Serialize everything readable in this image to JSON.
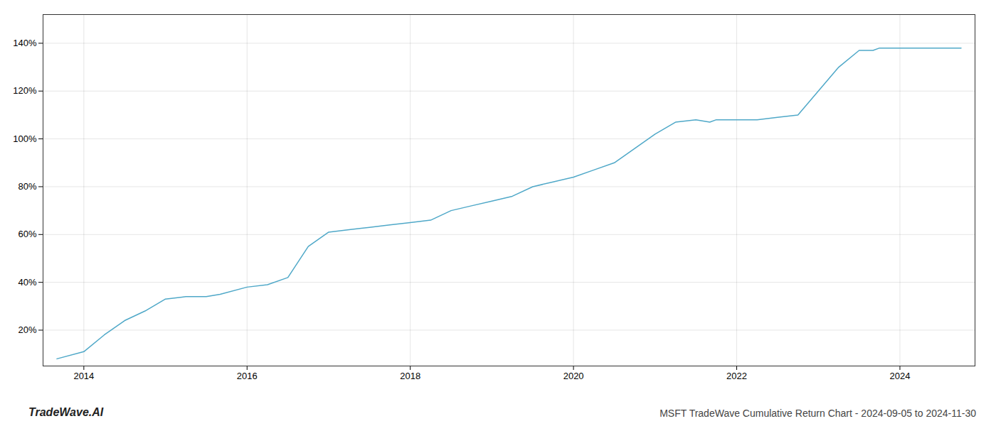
{
  "chart_data": {
    "type": "line",
    "title": "MSFT TradeWave Cumulative Return Chart - 2024-09-05 to 2024-11-30",
    "annotations": [
      "TradeWave.AI"
    ],
    "x": [
      2013.67,
      2014.0,
      2014.25,
      2014.5,
      2014.75,
      2015.0,
      2015.25,
      2015.5,
      2015.67,
      2016.0,
      2016.25,
      2016.5,
      2016.75,
      2017.0,
      2017.25,
      2017.5,
      2017.75,
      2018.0,
      2018.25,
      2018.5,
      2018.75,
      2019.0,
      2019.25,
      2019.5,
      2019.75,
      2020.0,
      2020.25,
      2020.5,
      2020.75,
      2021.0,
      2021.25,
      2021.5,
      2021.67,
      2021.75,
      2022.0,
      2022.25,
      2022.5,
      2022.75,
      2023.0,
      2023.25,
      2023.5,
      2023.67,
      2023.75,
      2024.0,
      2024.25,
      2024.5,
      2024.75
    ],
    "values": [
      8,
      11,
      18,
      24,
      28,
      33,
      34,
      34,
      35,
      38,
      39,
      42,
      55,
      61,
      62,
      63,
      64,
      65,
      66,
      70,
      72,
      74,
      76,
      80,
      82,
      84,
      87,
      90,
      96,
      102,
      107,
      108,
      107,
      108,
      108,
      108,
      109,
      110,
      120,
      130,
      137,
      137,
      138,
      138,
      138,
      138,
      138
    ],
    "color": "#4fa8c8",
    "xlim": [
      2013.5,
      2024.92
    ],
    "xticks": [
      2014,
      2016,
      2018,
      2020,
      2022,
      2024
    ],
    "ylim": [
      5,
      152
    ],
    "yticks": [
      {
        "value": 20,
        "label": "20%"
      },
      {
        "value": 40,
        "label": "40%"
      },
      {
        "value": 60,
        "label": "60%"
      },
      {
        "value": 80,
        "label": "80%"
      },
      {
        "value": 100,
        "label": "100%"
      },
      {
        "value": 120,
        "label": "120%"
      },
      {
        "value": 140,
        "label": "140%"
      }
    ],
    "grid": true
  }
}
